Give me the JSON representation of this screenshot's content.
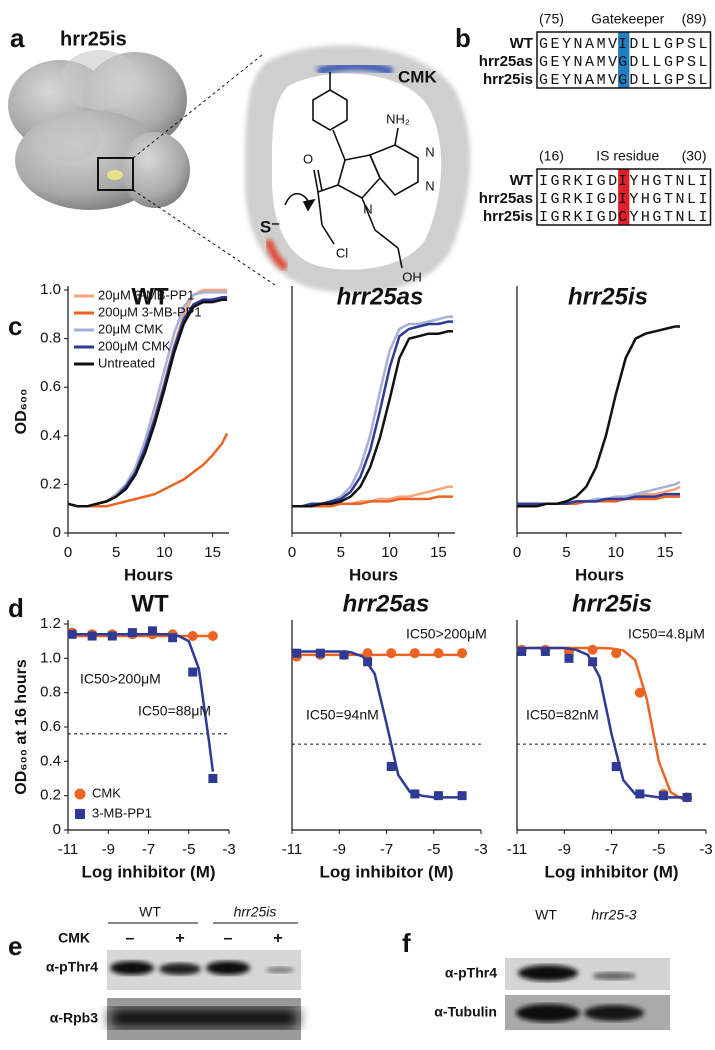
{
  "panels": {
    "a": {
      "letter": "a",
      "title": "hrr25is",
      "pocket_label": "CMK",
      "structure_labels": [
        "NH₂",
        "N",
        "N",
        "N",
        "O",
        "Cl",
        "OH",
        "S⁻"
      ]
    },
    "b": {
      "letter": "b",
      "alignments": [
        {
          "start": "(75)",
          "label": "Gatekeeper",
          "end": "(89)",
          "rows": [
            {
              "name": "WT",
              "seq": [
                "GEYNAMV",
                "I",
                "DLLGPSL"
              ]
            },
            {
              "name": "hrr25as",
              "seq": [
                "GEYNAMV",
                "G",
                "DLLGPSL"
              ]
            },
            {
              "name": "hrr25is",
              "seq": [
                "GEYNAMV",
                "G",
                "DLLGPSL"
              ]
            }
          ]
        },
        {
          "start": "(16)",
          "label": "IS residue",
          "end": "(30)",
          "rows": [
            {
              "name": "WT",
              "seq": [
                "IGRKIGD",
                "I",
                "YHGTNLI"
              ]
            },
            {
              "name": "hrr25as",
              "seq": [
                "IGRKIGD",
                "I",
                "YHGTNLI"
              ]
            },
            {
              "name": "hrr25is",
              "seq": [
                "IGRKIGD",
                "C",
                "YHGTNLI"
              ]
            }
          ]
        }
      ]
    },
    "c": {
      "letter": "c"
    },
    "d": {
      "letter": "d"
    },
    "e": {
      "letter": "e",
      "groups": [
        "WT",
        "hrr25is"
      ],
      "treatment": "CMK",
      "lanes": [
        "–",
        "+",
        "–",
        "+"
      ],
      "antibodies": [
        "α-pThr4",
        "α-Rpb3"
      ]
    },
    "f": {
      "letter": "f",
      "lanes": [
        "WT",
        "hrr25-3"
      ],
      "antibodies": [
        "α-pThr4",
        "α-Tubulin"
      ]
    }
  },
  "chart_data": [
    {
      "type": "line",
      "title": "WT",
      "title_italic": false,
      "xlabel": "Hours",
      "ylabel": "OD₆₀₀",
      "xlim": [
        0,
        16.7
      ],
      "ylim": [
        0,
        1
      ],
      "xticks": [
        0,
        5,
        10,
        15
      ],
      "yticks": [
        0,
        0.2,
        0.4,
        0.6,
        0.8,
        {
          "value": 1,
          "label": "1.0"
        }
      ],
      "legend": "upper left",
      "x": [
        0,
        1,
        2,
        3,
        4,
        5,
        6,
        7,
        8,
        9,
        10,
        11,
        12,
        13,
        14,
        15,
        16,
        16.5
      ],
      "series": [
        {
          "name": "20μM 3-MB-PP1",
          "color": "#f5a47c",
          "values": [
            0.12,
            0.11,
            0.11,
            0.12,
            0.13,
            0.15,
            0.19,
            0.25,
            0.35,
            0.48,
            0.62,
            0.77,
            0.9,
            0.98,
            1.0,
            1.0,
            1.0,
            1.0
          ]
        },
        {
          "name": "200μM 3-MB-PP1",
          "color": "#ec6424",
          "values": [
            0.12,
            0.11,
            0.11,
            0.11,
            0.11,
            0.12,
            0.13,
            0.14,
            0.15,
            0.16,
            0.18,
            0.2,
            0.22,
            0.25,
            0.28,
            0.32,
            0.37,
            0.41
          ]
        },
        {
          "name": "20μM CMK",
          "color": "#a6b0d8",
          "values": [
            0.12,
            0.11,
            0.11,
            0.12,
            0.13,
            0.16,
            0.2,
            0.27,
            0.38,
            0.52,
            0.67,
            0.82,
            0.93,
            0.98,
            0.99,
            0.99,
            0.99,
            0.99
          ]
        },
        {
          "name": "200μM CMK",
          "color": "#2e3a93",
          "values": [
            0.12,
            0.11,
            0.11,
            0.12,
            0.13,
            0.15,
            0.19,
            0.25,
            0.35,
            0.47,
            0.61,
            0.76,
            0.88,
            0.94,
            0.96,
            0.96,
            0.97,
            0.97
          ]
        },
        {
          "name": "Untreated",
          "color": "#111111",
          "values": [
            0.12,
            0.11,
            0.11,
            0.12,
            0.13,
            0.15,
            0.18,
            0.24,
            0.33,
            0.45,
            0.59,
            0.74,
            0.86,
            0.93,
            0.95,
            0.95,
            0.96,
            0.96
          ]
        }
      ]
    },
    {
      "type": "line",
      "title": "hrr25as",
      "title_italic": true,
      "xlabel": "Hours",
      "xlim": [
        0,
        16.7
      ],
      "ylim": [
        0,
        1
      ],
      "xticks": [
        0,
        5,
        10,
        15
      ],
      "x": [
        0,
        1,
        2,
        3,
        4,
        5,
        6,
        7,
        8,
        9,
        10,
        11,
        12,
        13,
        14,
        15,
        16,
        16.5
      ],
      "series": [
        {
          "color": "#f5a47c",
          "values": [
            0.11,
            0.11,
            0.11,
            0.11,
            0.12,
            0.12,
            0.12,
            0.13,
            0.13,
            0.14,
            0.14,
            0.15,
            0.15,
            0.16,
            0.17,
            0.18,
            0.19,
            0.19
          ]
        },
        {
          "color": "#ec6424",
          "values": [
            0.11,
            0.11,
            0.11,
            0.11,
            0.11,
            0.12,
            0.12,
            0.12,
            0.13,
            0.13,
            0.13,
            0.14,
            0.14,
            0.14,
            0.14,
            0.15,
            0.15,
            0.15
          ]
        },
        {
          "color": "#a6b0d8",
          "values": [
            0.11,
            0.11,
            0.12,
            0.12,
            0.13,
            0.15,
            0.19,
            0.27,
            0.4,
            0.58,
            0.75,
            0.84,
            0.86,
            0.86,
            0.87,
            0.88,
            0.89,
            0.89
          ]
        },
        {
          "color": "#2e3a93",
          "values": [
            0.11,
            0.11,
            0.12,
            0.12,
            0.13,
            0.14,
            0.17,
            0.23,
            0.34,
            0.5,
            0.68,
            0.81,
            0.84,
            0.85,
            0.86,
            0.86,
            0.87,
            0.87
          ]
        },
        {
          "color": "#111111",
          "values": [
            0.11,
            0.11,
            0.11,
            0.12,
            0.12,
            0.13,
            0.15,
            0.19,
            0.27,
            0.39,
            0.55,
            0.72,
            0.8,
            0.81,
            0.82,
            0.82,
            0.83,
            0.83
          ]
        }
      ]
    },
    {
      "type": "line",
      "title": "hrr25is",
      "title_italic": true,
      "xlabel": "Hours",
      "xlim": [
        0,
        16.7
      ],
      "ylim": [
        0,
        1
      ],
      "xticks": [
        0,
        5,
        10,
        15
      ],
      "x": [
        0,
        1,
        2,
        3,
        4,
        5,
        6,
        7,
        8,
        9,
        10,
        11,
        12,
        13,
        14,
        15,
        16,
        16.5
      ],
      "series": [
        {
          "color": "#f5a47c",
          "values": [
            0.12,
            0.12,
            0.12,
            0.12,
            0.12,
            0.12,
            0.13,
            0.13,
            0.13,
            0.14,
            0.14,
            0.15,
            0.15,
            0.16,
            0.16,
            0.17,
            0.18,
            0.19
          ]
        },
        {
          "color": "#ec6424",
          "values": [
            0.12,
            0.12,
            0.12,
            0.12,
            0.12,
            0.12,
            0.12,
            0.13,
            0.13,
            0.13,
            0.13,
            0.14,
            0.14,
            0.14,
            0.14,
            0.15,
            0.15,
            0.15
          ]
        },
        {
          "color": "#a6b0d8",
          "values": [
            0.12,
            0.12,
            0.12,
            0.12,
            0.12,
            0.13,
            0.13,
            0.13,
            0.14,
            0.14,
            0.15,
            0.15,
            0.16,
            0.17,
            0.18,
            0.19,
            0.2,
            0.21
          ]
        },
        {
          "color": "#2e3a93",
          "values": [
            0.12,
            0.12,
            0.12,
            0.12,
            0.12,
            0.12,
            0.13,
            0.13,
            0.13,
            0.14,
            0.14,
            0.14,
            0.15,
            0.15,
            0.15,
            0.16,
            0.16,
            0.16
          ]
        },
        {
          "color": "#111111",
          "values": [
            0.11,
            0.11,
            0.11,
            0.12,
            0.12,
            0.13,
            0.15,
            0.19,
            0.27,
            0.4,
            0.57,
            0.72,
            0.8,
            0.82,
            0.83,
            0.84,
            0.85,
            0.85
          ]
        }
      ]
    },
    {
      "type": "scatter",
      "title": "WT",
      "title_italic": false,
      "xlabel": "Log inhibitor (M)",
      "ylabel": "OD₆₀₀ at 16 hours",
      "xlim": [
        -11,
        -3
      ],
      "ylim": [
        0,
        1.2
      ],
      "xticks": [
        -11,
        -9,
        -7,
        -5,
        -3
      ],
      "yticks": [
        0,
        0.2,
        0.4,
        0.6,
        0.8,
        {
          "value": 1,
          "label": "1.0"
        },
        1.2
      ],
      "legend": "lower left",
      "hline": 0.56,
      "x": [
        -10.8,
        -9.8,
        -8.8,
        -7.8,
        -6.8,
        -5.8,
        -4.8,
        -3.8
      ],
      "fit_x": [
        -11,
        -10,
        -9,
        -8.5,
        -8,
        -7.5,
        -7,
        -6.5,
        -6,
        -5.5,
        -5,
        -4.5,
        -4,
        -3.8
      ],
      "annotations": [
        {
          "text": "IC50>200μM",
          "color": "#ec6424"
        },
        {
          "text": "IC50=88μM",
          "color": "#2e3a93"
        }
      ],
      "series": [
        {
          "name": "CMK",
          "color": "#ec6424",
          "marker": "circle",
          "values": [
            1.15,
            1.14,
            1.14,
            1.14,
            1.14,
            1.14,
            1.13,
            1.13
          ],
          "fit_values": [
            1.13,
            1.13,
            1.13,
            1.13,
            1.13,
            1.13,
            1.13,
            1.13,
            1.13,
            1.13,
            1.13,
            1.13,
            1.13,
            1.13
          ]
        },
        {
          "name": "3-MB-PP1",
          "color": "#2e3a93",
          "marker": "square",
          "values": [
            1.14,
            1.13,
            1.13,
            1.15,
            1.16,
            1.12,
            0.92,
            0.3
          ],
          "fit_values": [
            1.14,
            1.14,
            1.14,
            1.14,
            1.14,
            1.14,
            1.14,
            1.14,
            1.14,
            1.13,
            1.1,
            0.94,
            0.52,
            0.34
          ]
        }
      ]
    },
    {
      "type": "scatter",
      "title": "hrr25as",
      "title_italic": true,
      "xlabel": "Log inhibitor (M)",
      "xlim": [
        -11,
        -3
      ],
      "ylim": [
        0,
        1.2
      ],
      "xticks": [
        -11,
        -9,
        -7,
        -5,
        -3
      ],
      "hline": 0.5,
      "x": [
        -10.8,
        -9.8,
        -8.8,
        -7.8,
        -6.8,
        -5.8,
        -4.8,
        -3.8
      ],
      "fit_x": [
        -11,
        -10,
        -9,
        -8.5,
        -8,
        -7.5,
        -7,
        -6.5,
        -6,
        -5.5,
        -5,
        -4.5,
        -4,
        -3.8
      ],
      "annotations": [
        {
          "text": "IC50>200μM",
          "color": "#ec6424"
        },
        {
          "text": "IC50=94nM",
          "color": "#2e3a93"
        }
      ],
      "series": [
        {
          "color": "#ec6424",
          "marker": "circle",
          "values": [
            1.01,
            1.02,
            1.02,
            1.03,
            1.03,
            1.03,
            1.03,
            1.03
          ],
          "fit_values": [
            1.02,
            1.02,
            1.02,
            1.02,
            1.02,
            1.02,
            1.02,
            1.02,
            1.02,
            1.02,
            1.02,
            1.02,
            1.02,
            1.02
          ]
        },
        {
          "color": "#2e3a93",
          "marker": "square",
          "values": [
            1.03,
            1.03,
            1.02,
            0.98,
            0.37,
            0.21,
            0.2,
            0.2
          ],
          "fit_values": [
            1.04,
            1.04,
            1.04,
            1.035,
            1.01,
            0.91,
            0.62,
            0.32,
            0.22,
            0.2,
            0.19,
            0.19,
            0.19,
            0.19
          ]
        }
      ]
    },
    {
      "type": "scatter",
      "title": "hrr25is",
      "title_italic": true,
      "xlabel": "Log inhibitor (M)",
      "xlim": [
        -11,
        -3
      ],
      "ylim": [
        0,
        1.2
      ],
      "xticks": [
        -11,
        -9,
        -7,
        -5,
        -3
      ],
      "hline": 0.5,
      "x": [
        -10.8,
        -9.8,
        -8.8,
        -7.8,
        -6.8,
        -5.8,
        -4.8,
        -3.8
      ],
      "fit_x": [
        -11,
        -10,
        -9,
        -8.5,
        -8,
        -7.5,
        -7,
        -6.5,
        -6,
        -5.5,
        -5,
        -4.5,
        -4,
        -3.8
      ],
      "annotations": [
        {
          "text": "IC50=4.8μM",
          "color": "#ec6424"
        },
        {
          "text": "IC50=82nM",
          "color": "#2e3a93"
        }
      ],
      "series": [
        {
          "color": "#ec6424",
          "marker": "circle",
          "values": [
            1.05,
            1.05,
            1.04,
            1.05,
            1.03,
            0.8,
            0.21,
            0.19
          ],
          "fit_values": [
            1.06,
            1.06,
            1.06,
            1.06,
            1.06,
            1.06,
            1.057,
            1.046,
            0.99,
            0.76,
            0.4,
            0.22,
            0.18,
            0.175
          ]
        },
        {
          "color": "#2e3a93",
          "marker": "square",
          "values": [
            1.04,
            1.04,
            1.0,
            0.98,
            0.37,
            0.21,
            0.2,
            0.19
          ],
          "fit_values": [
            1.06,
            1.06,
            1.06,
            1.05,
            1.02,
            0.89,
            0.56,
            0.29,
            0.21,
            0.2,
            0.19,
            0.19,
            0.19,
            0.19
          ]
        }
      ]
    }
  ]
}
